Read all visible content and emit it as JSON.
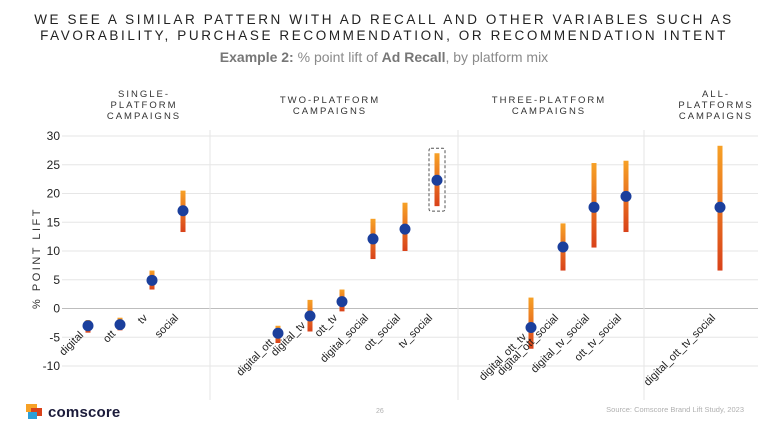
{
  "header": {
    "title_line1": "WE SEE A SIMILAR PATTERN WITH AD RECALL AND OTHER VARIABLES SUCH AS",
    "title_line2": "FAVORABILITY, PURCHASE RECOMMENDATION, OR RECOMMENDATION INTENT",
    "subtitle_prefix": "Example 2:",
    "subtitle_mid": " % point lift of ",
    "subtitle_bold": "Ad Recall",
    "subtitle_suffix": ", by platform mix"
  },
  "groups": [
    {
      "line1": "SINGLE-",
      "line2": "PLATFORM",
      "line3": "CAMPAIGNS"
    },
    {
      "line1": "TWO-PLATFORM",
      "line2": "CAMPAIGNS",
      "line3": ""
    },
    {
      "line1": "THREE-PLATFORM",
      "line2": "CAMPAIGNS",
      "line3": ""
    },
    {
      "line1": "ALL-",
      "line2": "PLATFORMS",
      "line3": "CAMPAIGNS"
    }
  ],
  "footer": {
    "logo_text": "comscore",
    "page_number": "26",
    "source": "Source: Comscore Brand Lift Study, 2023"
  },
  "colors": {
    "point": "#1b3f9c",
    "bar_top": "#f7a126",
    "bar_bottom": "#d9421a",
    "grid": "#e6e6e6",
    "divider": "#e6e6e6"
  },
  "chart_data": {
    "type": "scatter",
    "title": "% point lift of Ad Recall, by platform mix",
    "xlabel": "",
    "ylabel": "% POINT LIFT",
    "ylim": [
      -12,
      30
    ],
    "yticks": [
      -10,
      -5,
      0,
      5,
      10,
      15,
      20,
      25,
      30
    ],
    "grid": true,
    "groups": [
      "SINGLE-PLATFORM CAMPAIGNS",
      "TWO-PLATFORM CAMPAIGNS",
      "THREE-PLATFORM CAMPAIGNS",
      "ALL-PLATFORMS CAMPAIGNS"
    ],
    "series": [
      {
        "name": "digital",
        "group": 0,
        "value": -3,
        "low": -4.2,
        "high": -2
      },
      {
        "name": "ott",
        "group": 0,
        "value": -2.8,
        "low": -3.8,
        "high": -1.6
      },
      {
        "name": "tv",
        "group": 0,
        "value": 4.9,
        "low": 3.3,
        "high": 6.6
      },
      {
        "name": "social",
        "group": 0,
        "value": 17,
        "low": 13.3,
        "high": 20.5
      },
      {
        "name": "digital_ott",
        "group": 1,
        "value": -4.3,
        "low": -6,
        "high": -3
      },
      {
        "name": "digital_tv",
        "group": 1,
        "value": -1.3,
        "low": -4,
        "high": 1.5
      },
      {
        "name": "ott_tv",
        "group": 1,
        "value": 1.2,
        "low": -0.5,
        "high": 3.3
      },
      {
        "name": "digital_social",
        "group": 1,
        "value": 12.1,
        "low": 8.6,
        "high": 15.6
      },
      {
        "name": "ott_social",
        "group": 1,
        "value": 13.8,
        "low": 10,
        "high": 18.4
      },
      {
        "name": "tv_social",
        "group": 1,
        "value": 22.3,
        "low": 17.8,
        "high": 27,
        "highlight": true
      },
      {
        "name": "digital_ott_tv",
        "group": 2,
        "value": -3.3,
        "low": -7,
        "high": 1.9
      },
      {
        "name": "digital_ott_social",
        "group": 2,
        "value": 10.7,
        "low": 6.6,
        "high": 14.8
      },
      {
        "name": "digital_tv_social",
        "group": 2,
        "value": 17.6,
        "low": 10.6,
        "high": 25.3
      },
      {
        "name": "ott_tv_social",
        "group": 2,
        "value": 19.5,
        "low": 13.3,
        "high": 25.7
      },
      {
        "name": "digital_ott_tv_social",
        "group": 3,
        "value": 17.6,
        "low": 6.6,
        "high": 28.3
      }
    ]
  }
}
